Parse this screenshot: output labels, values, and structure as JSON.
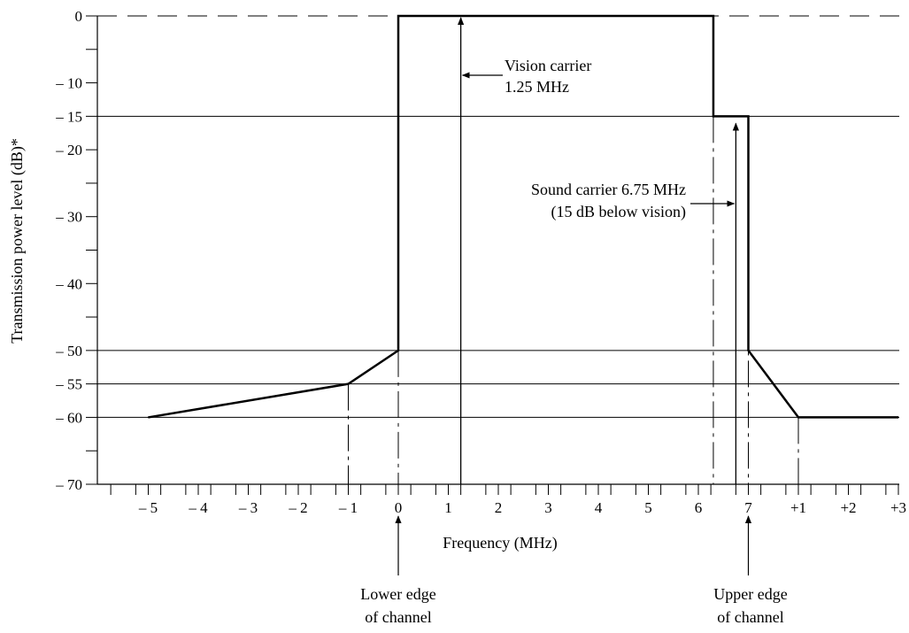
{
  "chart_data": {
    "type": "line",
    "xlabel": "Frequency (MHz)",
    "ylabel": "Transmission power level (dB)*",
    "ylim": [
      -70,
      0
    ],
    "y_ticks": [
      0,
      -10,
      -15,
      -20,
      -30,
      -40,
      -50,
      -55,
      -60,
      -70
    ],
    "y_tick_labels": [
      "0",
      "– 10",
      "– 15",
      "– 20",
      "– 30",
      "– 40",
      "– 50",
      "– 55",
      "– 60",
      "– 70"
    ],
    "y_minor_ticks": [
      -5,
      -25,
      -35,
      -45,
      -65
    ],
    "y_reference_lines": [
      -15,
      -50,
      -55,
      -60
    ],
    "x_tick_labels": [
      "– 5",
      "– 4",
      "– 3",
      "– 2",
      "– 1",
      "0",
      "1",
      "2",
      "3",
      "4",
      "5",
      "6",
      "7",
      "+1",
      "+2",
      "+3"
    ],
    "x_tick_positions_mhz": [
      -5,
      -4,
      -3,
      -2,
      -1,
      0,
      1,
      2,
      3,
      4,
      5,
      6,
      7,
      8,
      9,
      10
    ],
    "xlim": [
      -7.25,
      10
    ],
    "series": [
      {
        "x": [
          -5,
          -1,
          0,
          0,
          6.3,
          6.3,
          7,
          7,
          8,
          10
        ],
        "y": [
          -60,
          -55,
          -50,
          0,
          0,
          -15,
          -15,
          -50,
          -60,
          -60
        ]
      }
    ],
    "dashed_verticals_mhz": [
      -1,
      0,
      6.3,
      7,
      8
    ],
    "carrier_lines_mhz": [
      1.25,
      6.75
    ],
    "annotations": {
      "vision_line1": "Vision carrier",
      "vision_line2": "1.25 MHz",
      "sound_line1": "Sound carrier 6.75 MHz",
      "sound_line2": "(15 dB below vision)",
      "lower_line1": "Lower edge",
      "lower_line2": "of channel",
      "upper_line1": "Upper edge",
      "upper_line2": "of channel"
    }
  }
}
